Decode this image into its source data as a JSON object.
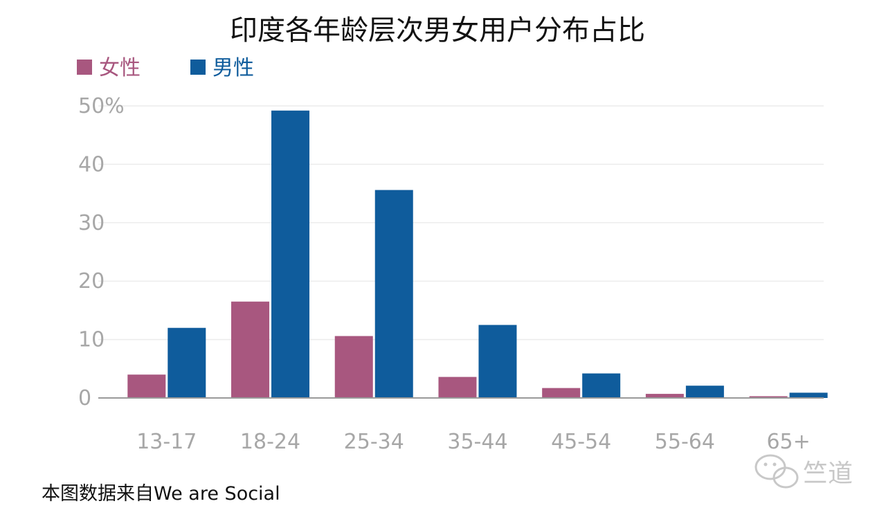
{
  "chart_data": {
    "type": "bar",
    "title": "印度各年龄层次男女用户分布占比",
    "categories": [
      "13-17",
      "18-24",
      "25-34",
      "35-44",
      "45-54",
      "55-64",
      "65+"
    ],
    "series": [
      {
        "name": "女性",
        "color": "#a8577f",
        "values": [
          4.0,
          16.5,
          10.6,
          3.6,
          1.7,
          0.7,
          0.3
        ]
      },
      {
        "name": "男性",
        "color": "#0f5c9c",
        "values": [
          12.0,
          49.2,
          35.6,
          12.5,
          4.2,
          2.1,
          0.9
        ]
      }
    ],
    "yticks": [
      "0",
      "10",
      "20",
      "30",
      "40",
      "50%"
    ],
    "ylim": [
      0,
      50
    ],
    "grid": true,
    "legend_position": "top-left"
  },
  "source_note": "本图数据来自We are Social",
  "watermark": {
    "text": "竺道",
    "icon": "wechat-icon"
  }
}
